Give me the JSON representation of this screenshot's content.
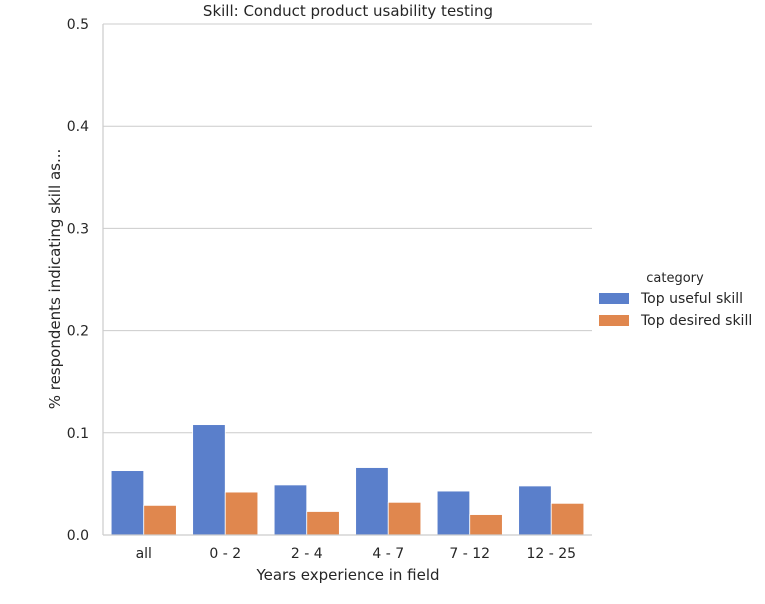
{
  "chart_data": {
    "type": "bar",
    "title": "Skill: Conduct product usability testing",
    "xlabel": "Years experience in field",
    "ylabel": "% respondents indicating skill as...",
    "categories": [
      "all",
      "0 - 2",
      "2 - 4",
      "4 - 7",
      "7 - 12",
      "12 - 25"
    ],
    "series": [
      {
        "name": "Top useful skill",
        "color": "#5a7fcb",
        "values": [
          0.063,
          0.108,
          0.049,
          0.066,
          0.043,
          0.048
        ]
      },
      {
        "name": "Top desired skill",
        "color": "#e0874e",
        "values": [
          0.029,
          0.042,
          0.023,
          0.032,
          0.02,
          0.031
        ]
      }
    ],
    "ylim": [
      0,
      0.5
    ],
    "yticks": [
      "0.0",
      "0.1",
      "0.2",
      "0.3",
      "0.4",
      "0.5"
    ],
    "grid": true,
    "legend_title": "category",
    "legend_position": "right"
  }
}
